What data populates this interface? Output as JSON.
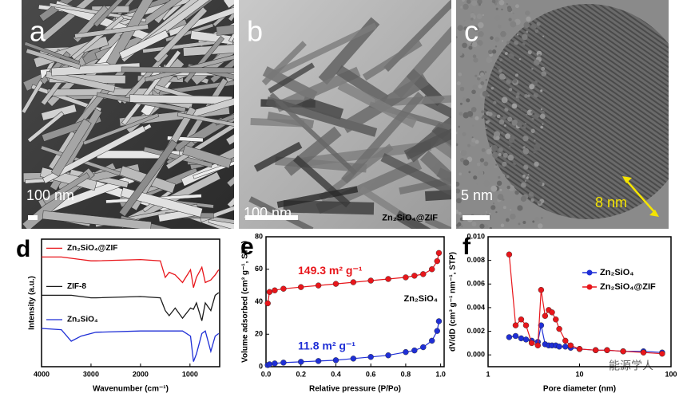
{
  "panels": [
    {
      "letter": "a",
      "scale_bar": "100 nm"
    },
    {
      "letter": "b",
      "scale_bar": "100 nm"
    },
    {
      "letter": "c",
      "scale_bar": "5 nm",
      "annotation": "8 nm"
    }
  ],
  "chart_data": [
    {
      "type": "line",
      "letter": "d",
      "xlabel": "Wavenumber (cm⁻¹)",
      "ylabel": "Intensity (a.u.)",
      "x": [
        4000,
        3600,
        3400,
        3200,
        3000,
        2900,
        2000,
        1600,
        1500,
        1420,
        1300,
        1150,
        990,
        930,
        870,
        760,
        690,
        580,
        490,
        420
      ],
      "xlim": [
        4000,
        400
      ],
      "xticks": [
        4000,
        3000,
        2000,
        1000
      ],
      "ylim": [
        0,
        100
      ],
      "series": [
        {
          "name": "Zn₂SiO₄@ZIF",
          "color": "#e8161b",
          "values": [
            86,
            86,
            85,
            84,
            83,
            83,
            84,
            83,
            70,
            74,
            72,
            66,
            76,
            62,
            70,
            78,
            66,
            68,
            72,
            76
          ]
        },
        {
          "name": "ZIF-8",
          "color": "#1a1a1a",
          "values": [
            56,
            56,
            56,
            55,
            54,
            54,
            55,
            54,
            44,
            40,
            46,
            38,
            46,
            45,
            50,
            36,
            50,
            44,
            56,
            58
          ]
        },
        {
          "name": "Zn₂SiO₄",
          "color": "#1f2fd6",
          "values": [
            30,
            29,
            20,
            24,
            26,
            27,
            28,
            28,
            28,
            28,
            28,
            28,
            24,
            4,
            10,
            26,
            28,
            12,
            24,
            26
          ]
        }
      ]
    },
    {
      "type": "line",
      "markers": true,
      "letter": "e",
      "xlabel": "Relative pressure (P/Po)",
      "ylabel": "Volume adsorbed (cm³ g⁻¹, STP)",
      "x": [
        0.01,
        0.02,
        0.05,
        0.1,
        0.2,
        0.3,
        0.4,
        0.5,
        0.6,
        0.7,
        0.8,
        0.85,
        0.9,
        0.95,
        0.98,
        0.99
      ],
      "xlim": [
        0,
        1.02
      ],
      "xticks": [
        {
          "value": 0,
          "label": "0.0"
        },
        {
          "value": 0.2,
          "label": "0.2"
        },
        {
          "value": 0.4,
          "label": "0.4"
        },
        {
          "value": 0.6,
          "label": "0.6"
        },
        {
          "value": 0.8,
          "label": "0.8"
        },
        {
          "value": 1,
          "label": "1.0"
        }
      ],
      "ylim": [
        0,
        80
      ],
      "yticks": [
        0,
        20,
        40,
        60,
        80
      ],
      "annotations": [
        "149.3 m² g⁻¹",
        "11.8 m² g⁻¹"
      ],
      "series": [
        {
          "name": "Zn₂SiO₄@ZIF",
          "color": "#e8161b",
          "values": [
            39,
            46,
            47,
            48,
            49,
            50,
            51,
            52,
            53,
            54,
            55,
            56,
            57,
            60,
            65,
            70
          ]
        },
        {
          "name": "Zn₂SiO₄",
          "color": "#1f2fd6",
          "values": [
            1,
            1.5,
            2,
            2.5,
            3,
            3.5,
            4,
            5,
            6,
            7,
            9,
            10,
            12,
            16,
            22,
            28
          ]
        }
      ]
    },
    {
      "type": "line",
      "markers": true,
      "letter": "f",
      "xlabel": "Pore diameter (nm)",
      "ylabel": "dV/dD (cm³ g⁻¹ nm⁻¹, STP)",
      "xscale": "log",
      "legend": "upper right",
      "x": [
        1.7,
        2,
        2.3,
        2.6,
        3,
        3.5,
        3.8,
        4.2,
        4.6,
        5,
        5.5,
        6,
        7,
        8,
        10,
        15,
        20,
        30,
        50,
        80
      ],
      "xlim": [
        1,
        100
      ],
      "xticks": [
        1,
        10,
        100
      ],
      "ylim": [
        -0.001,
        0.01
      ],
      "yticks": [
        {
          "value": 0,
          "label": "0.000"
        },
        {
          "value": 0.002,
          "label": "0.002"
        },
        {
          "value": 0.004,
          "label": "0.004"
        },
        {
          "value": 0.006,
          "label": "0.006"
        },
        {
          "value": 0.008,
          "label": "0.008"
        },
        {
          "value": 0.01,
          "label": "0.010"
        }
      ],
      "series": [
        {
          "name": "Zn₂SiO₄",
          "color": "#1f2fd6",
          "values": [
            0.0015,
            0.0016,
            0.0014,
            0.0013,
            0.0012,
            0.0011,
            0.0025,
            0.0009,
            0.0008,
            0.0008,
            0.0008,
            0.0007,
            0.0007,
            0.0006,
            0.0005,
            0.0004,
            0.0004,
            0.0003,
            0.0003,
            0.0002
          ]
        },
        {
          "name": "Zn₂SiO₄@ZIF",
          "color": "#e8161b",
          "values": [
            0.0085,
            0.0025,
            0.003,
            0.0025,
            0.001,
            0.0008,
            0.0055,
            0.0033,
            0.0038,
            0.0036,
            0.003,
            0.0022,
            0.0012,
            0.0008,
            0.0005,
            0.0004,
            0.0004,
            0.0003,
            0.0002,
            0.0001
          ]
        }
      ]
    }
  ],
  "watermark": "能源学人"
}
